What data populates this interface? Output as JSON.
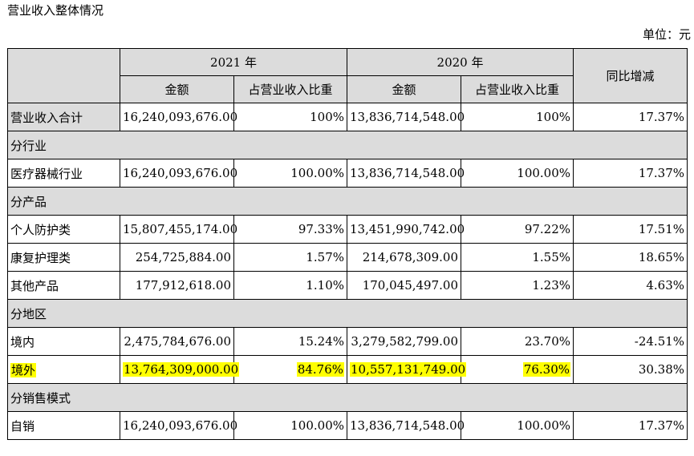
{
  "title": "营业收入整体情况",
  "unit": "单位：元",
  "header": {
    "year_2021": "2021 年",
    "year_2020": "2020 年",
    "amount": "金额",
    "ratio": "占营业收入比重",
    "yoy": "同比增减"
  },
  "total": {
    "label": "营业收入合计",
    "amount_2021": "16,240,093,676.00",
    "ratio_2021": "100%",
    "amount_2020": "13,836,714,548.00",
    "ratio_2020": "100%",
    "yoy": "17.37%"
  },
  "sections": {
    "industry": "分行业",
    "product": "分产品",
    "region": "分地区",
    "sales_mode": "分销售模式"
  },
  "rows": {
    "medical": {
      "label": "医疗器械行业",
      "amount_2021": "16,240,093,676.00",
      "ratio_2021": "100.00%",
      "amount_2020": "13,836,714,548.00",
      "ratio_2020": "100.00%",
      "yoy": "17.37%"
    },
    "personal": {
      "label": "个人防护类",
      "amount_2021": "15,807,455,174.00",
      "ratio_2021": "97.33%",
      "amount_2020": "13,451,990,742.00",
      "ratio_2020": "97.22%",
      "yoy": "17.51%"
    },
    "rehab": {
      "label": "康复护理类",
      "amount_2021": "254,725,884.00",
      "ratio_2021": "1.57%",
      "amount_2020": "214,678,309.00",
      "ratio_2020": "1.55%",
      "yoy": "18.65%"
    },
    "other": {
      "label": "其他产品",
      "amount_2021": "177,912,618.00",
      "ratio_2021": "1.10%",
      "amount_2020": "170,045,497.00",
      "ratio_2020": "1.23%",
      "yoy": "4.63%"
    },
    "domestic": {
      "label": "境内",
      "amount_2021": "2,475,784,676.00",
      "ratio_2021": "15.24%",
      "amount_2020": "3,279,582,799.00",
      "ratio_2020": "23.70%",
      "yoy": "-24.51%"
    },
    "overseas": {
      "label": "境外",
      "amount_2021": "13,764,309,000.00",
      "ratio_2021": "84.76%",
      "amount_2020": "10,557,131,749.00",
      "ratio_2020": "76.30%",
      "yoy": "30.38%"
    },
    "direct": {
      "label": "自销",
      "amount_2021": "16,240,093,676.00",
      "ratio_2021": "100.00%",
      "amount_2020": "13,836,714,548.00",
      "ratio_2020": "100.00%",
      "yoy": "17.37%"
    }
  },
  "colors": {
    "header_bg": "#dcdcdc",
    "highlight": "#ffff00"
  }
}
